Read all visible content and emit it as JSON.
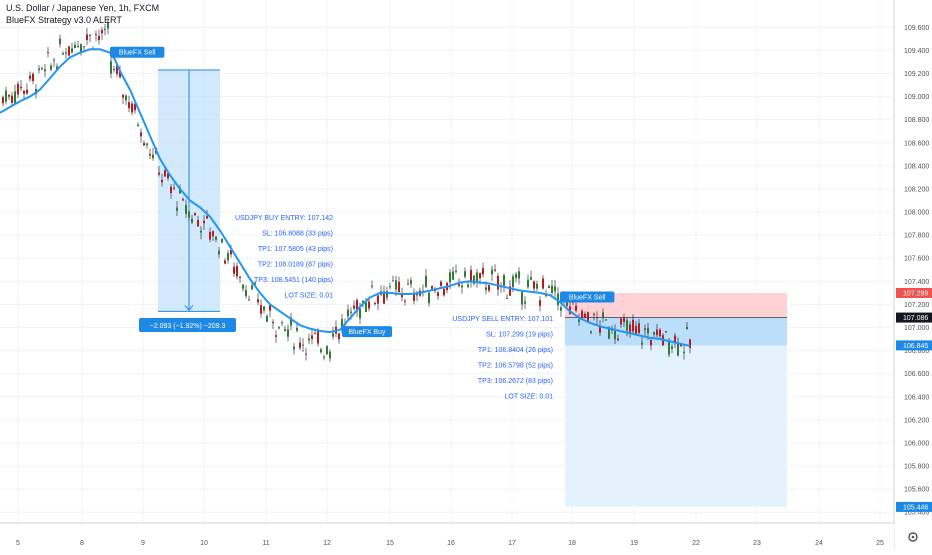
{
  "header": {
    "title": "U.S. Dollar / Japanese Yen, 1h, FXCM",
    "indicator": "BlueFX Strategy v3.0 ALERT"
  },
  "colors": {
    "up": "#26a69a",
    "down": "#ef5350",
    "candle_up": "#2e7d32",
    "candle_down": "#b71c1c",
    "ma": "#2196f3",
    "zone_blue": "#bbdefb",
    "zone_red": "#ffcdd2",
    "text_blue": "#2962ff",
    "badge": "#1e88e5",
    "label_red": "#ef5350",
    "label_dark": "#131722"
  },
  "chart_data": {
    "type": "candlestick",
    "y_axis_ticks": [
      "109.600",
      "109.400",
      "109.200",
      "109.000",
      "108.800",
      "108.600",
      "108.400",
      "108.200",
      "108.000",
      "107.800",
      "107.600",
      "107.400",
      "107.200",
      "107.000",
      "106.800",
      "106.600",
      "106.400",
      "106.200",
      "106.000",
      "105.800",
      "105.600",
      "105.400"
    ],
    "ylim": [
      105.35,
      109.75
    ],
    "x_axis_ticks": [
      "5",
      "8",
      "9",
      "10",
      "11",
      "12",
      "15",
      "16",
      "17",
      "18",
      "19",
      "22",
      "23",
      "24",
      "25"
    ],
    "price_labels": [
      {
        "value": 107.299,
        "text": "107.299",
        "color": "#ef5350"
      },
      {
        "value": 107.086,
        "text": "107.086",
        "color": "#131722"
      },
      {
        "value": 106.845,
        "text": "106.845",
        "color": "#1e88e5"
      },
      {
        "value": 105.446,
        "text": "105.446",
        "color": "#1e88e5"
      }
    ],
    "ma_line": [
      [
        0,
        108.86
      ],
      [
        10,
        108.91
      ],
      [
        20,
        108.96
      ],
      [
        30,
        109.0
      ],
      [
        40,
        109.06
      ],
      [
        50,
        109.16
      ],
      [
        60,
        109.26
      ],
      [
        70,
        109.34
      ],
      [
        80,
        109.38
      ],
      [
        90,
        109.41
      ],
      [
        100,
        109.41
      ],
      [
        110,
        109.38
      ],
      [
        115,
        109.32
      ],
      [
        120,
        109.22
      ],
      [
        130,
        109.06
      ],
      [
        140,
        108.86
      ],
      [
        150,
        108.66
      ],
      [
        160,
        108.46
      ],
      [
        170,
        108.32
      ],
      [
        180,
        108.2
      ],
      [
        190,
        108.1
      ],
      [
        200,
        108.04
      ],
      [
        210,
        107.96
      ],
      [
        220,
        107.84
      ],
      [
        230,
        107.7
      ],
      [
        240,
        107.56
      ],
      [
        250,
        107.42
      ],
      [
        260,
        107.3
      ],
      [
        270,
        107.2
      ],
      [
        280,
        107.14
      ],
      [
        290,
        107.08
      ],
      [
        300,
        107.02
      ],
      [
        310,
        106.99
      ],
      [
        320,
        106.97
      ],
      [
        330,
        106.96
      ],
      [
        340,
        106.98
      ],
      [
        350,
        107.08
      ],
      [
        360,
        107.18
      ],
      [
        370,
        107.26
      ],
      [
        380,
        107.3
      ],
      [
        390,
        107.3
      ],
      [
        400,
        107.29
      ],
      [
        410,
        107.29
      ],
      [
        420,
        107.3
      ],
      [
        430,
        107.32
      ],
      [
        440,
        107.34
      ],
      [
        450,
        107.36
      ],
      [
        460,
        107.39
      ],
      [
        470,
        107.4
      ],
      [
        480,
        107.39
      ],
      [
        490,
        107.38
      ],
      [
        500,
        107.36
      ],
      [
        510,
        107.34
      ],
      [
        520,
        107.32
      ],
      [
        530,
        107.31
      ],
      [
        540,
        107.3
      ],
      [
        550,
        107.28
      ],
      [
        560,
        107.22
      ],
      [
        570,
        107.14
      ],
      [
        580,
        107.08
      ],
      [
        590,
        107.04
      ],
      [
        600,
        107.01
      ],
      [
        610,
        106.99
      ],
      [
        620,
        106.97
      ],
      [
        630,
        106.95
      ],
      [
        640,
        106.93
      ],
      [
        650,
        106.91
      ],
      [
        660,
        106.9
      ],
      [
        670,
        106.88
      ],
      [
        680,
        106.86
      ],
      [
        690,
        106.84
      ]
    ],
    "measure": {
      "text": "−2.093 (−1.92%) −209.3"
    },
    "buy_annotation": [
      "USDJPY BUY ENTRY: 107.142",
      "SL: 106.8088 (33 pips)",
      "TP1: 107.5805 (43 pips)",
      "TP2: 108.0189 (87 pips)",
      "TP3: 108.5451 (140 pips)",
      "LOT SIZE: 0.01"
    ],
    "sell_annotation": [
      "USDJPY SELL ENTRY: 107.101",
      "SL: 107.299 (19 pips)",
      "TP1: 106.8404 (26 pips)",
      "TP2: 106.5798 (52 pips)",
      "TP3: 106.2672 (83 pips)",
      "LOT SIZE: 0.01"
    ],
    "signals": [
      {
        "text": "BlueFX Sell",
        "x": 110,
        "price": 109.38
      },
      {
        "text": "BlueFX Buy",
        "x": 342,
        "price": 106.96
      },
      {
        "text": "BlueFX Sell",
        "x": 560,
        "price": 107.26
      }
    ],
    "trade_zones": {
      "measure_box": {
        "x0": 158,
        "x1": 220,
        "top": 109.23,
        "bottom": 107.14
      },
      "sell_stop": {
        "x0": 565,
        "x1": 787,
        "top": 107.299,
        "bottom": 107.086
      },
      "sell_tp": {
        "x0": 565,
        "x1": 787,
        "top": 107.086,
        "bottom": 105.446
      },
      "sell_tp_dark": {
        "x0": 565,
        "x1": 787,
        "top": 107.086,
        "bottom": 106.845
      }
    }
  }
}
